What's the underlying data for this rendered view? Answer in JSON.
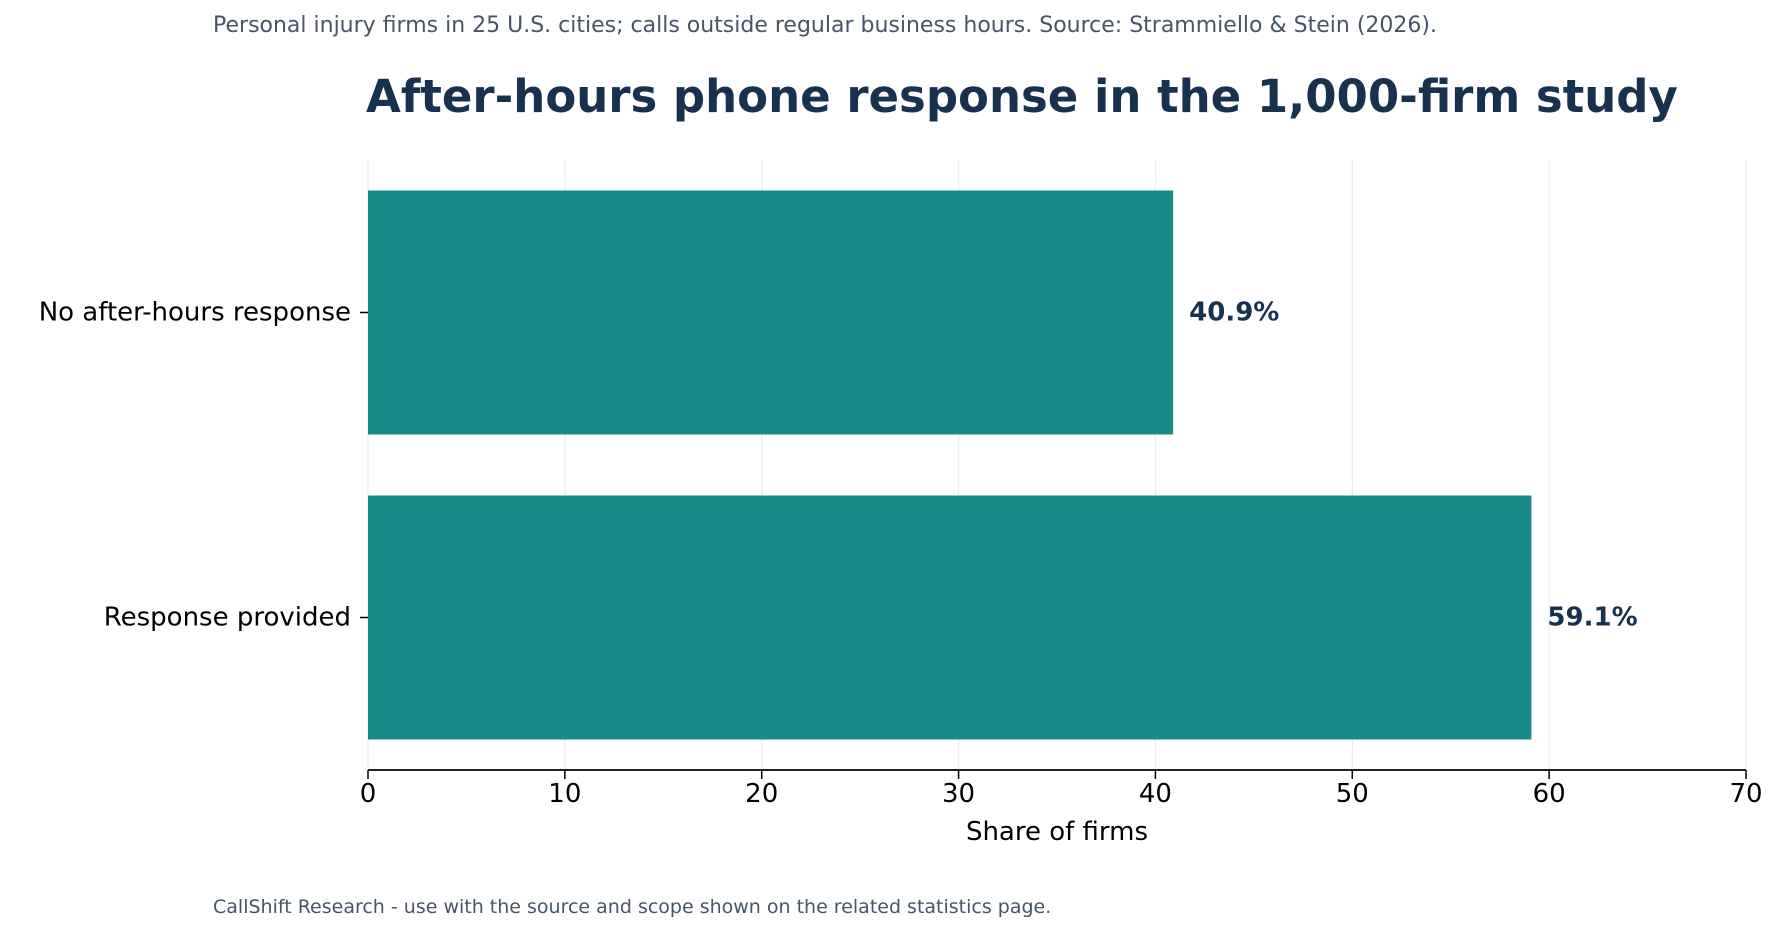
{
  "header": {
    "subtitle": "Personal injury firms in 25 U.S. cities; calls outside regular business hours. Source: Strammiello & Stein (2026).",
    "title": "After-hours phone response in the 1,000-firm study"
  },
  "footer": {
    "note": "CallShift Research - use with the source and scope shown on the related statistics page."
  },
  "colors": {
    "bar": "#178a89",
    "value_label": "#17314e",
    "grid": "#ececec",
    "axis": "#000000"
  },
  "chart_data": {
    "type": "bar",
    "orientation": "horizontal",
    "categories": [
      "No after-hours response",
      "Response provided"
    ],
    "values": [
      40.9,
      59.1
    ],
    "data_labels": [
      "40.9%",
      "59.1%"
    ],
    "xlabel": "Share of firms",
    "ylabel": "",
    "xlim": [
      0,
      70
    ],
    "xticks": [
      0,
      10,
      20,
      30,
      40,
      50,
      60,
      70
    ],
    "grid": "vertical",
    "legend": "none"
  }
}
